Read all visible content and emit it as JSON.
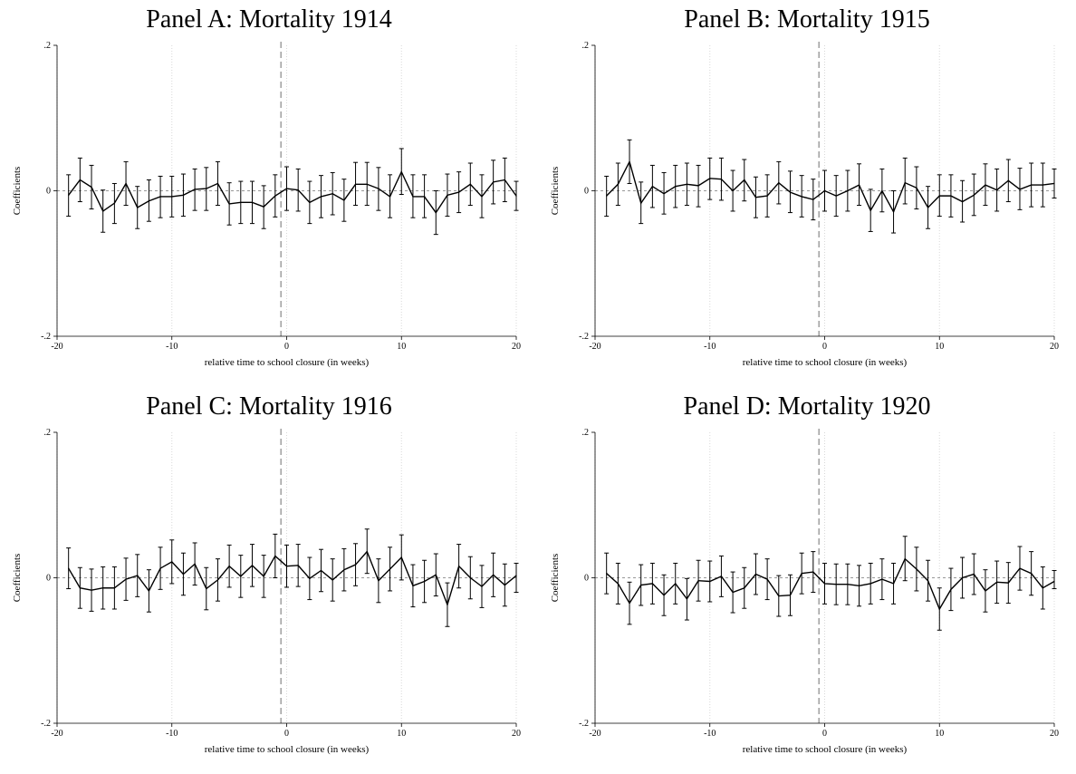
{
  "chart_data": [
    {
      "type": "line",
      "title": "Panel A: Mortality 1914",
      "xlabel": "relative time to school closure (in weeks)",
      "ylabel": "Coefficients",
      "xlim": [
        -20,
        20
      ],
      "ylim": [
        -0.2,
        0.2
      ],
      "xticks": [
        "-20",
        "-10",
        "0",
        "10",
        "20"
      ],
      "yticks": [
        "-.2",
        "0",
        ".2"
      ],
      "event_line_x": -0.5,
      "grid": "vertical dotted",
      "series": [
        {
          "x": [
            -19,
            -18,
            -17,
            -16,
            -15,
            -14,
            -13,
            -12,
            -11,
            -10,
            -9,
            -8,
            -7,
            -6,
            -5,
            -4,
            -3,
            -2,
            -1,
            0,
            1,
            2,
            3,
            4,
            5,
            6,
            7,
            8,
            9,
            10,
            11,
            12,
            13,
            14,
            15,
            16,
            17,
            18,
            19,
            20
          ],
          "values": [
            -0.006,
            0.015,
            0.005,
            -0.028,
            -0.017,
            0.01,
            -0.023,
            -0.014,
            -0.008,
            -0.008,
            -0.006,
            0.002,
            0.003,
            0.01,
            -0.018,
            -0.016,
            -0.016,
            -0.022,
            -0.007,
            0.003,
            0.001,
            -0.016,
            -0.008,
            -0.004,
            -0.013,
            0.009,
            0.009,
            0.003,
            -0.008,
            0.026,
            -0.008,
            -0.008,
            -0.03,
            -0.006,
            -0.002,
            0.009,
            -0.008,
            0.012,
            0.015,
            -0.007
          ],
          "ci_low": [
            -0.035,
            -0.015,
            -0.025,
            -0.057,
            -0.045,
            -0.02,
            -0.052,
            -0.042,
            -0.037,
            -0.036,
            -0.035,
            -0.027,
            -0.027,
            -0.02,
            -0.047,
            -0.045,
            -0.045,
            -0.052,
            -0.036,
            -0.027,
            -0.028,
            -0.045,
            -0.037,
            -0.033,
            -0.042,
            -0.02,
            -0.02,
            -0.027,
            -0.037,
            -0.005,
            -0.037,
            -0.037,
            -0.06,
            -0.035,
            -0.03,
            -0.02,
            -0.037,
            -0.018,
            -0.015,
            -0.027
          ],
          "ci_high": [
            0.022,
            0.045,
            0.035,
            0.001,
            0.01,
            0.04,
            0.006,
            0.015,
            0.02,
            0.02,
            0.023,
            0.03,
            0.032,
            0.04,
            0.011,
            0.013,
            0.013,
            0.007,
            0.022,
            0.033,
            0.03,
            0.013,
            0.021,
            0.025,
            0.016,
            0.039,
            0.039,
            0.032,
            0.022,
            0.058,
            0.022,
            0.022,
            0.0,
            0.023,
            0.026,
            0.038,
            0.022,
            0.042,
            0.045,
            0.013
          ]
        }
      ]
    },
    {
      "type": "line",
      "title": "Panel B: Mortality 1915",
      "xlabel": "relative time to school closure (in weeks)",
      "ylabel": "Coefficients",
      "xlim": [
        -20,
        20
      ],
      "ylim": [
        -0.2,
        0.2
      ],
      "xticks": [
        "-20",
        "-10",
        "0",
        "10",
        "20"
      ],
      "yticks": [
        "-.2",
        "0",
        ".2"
      ],
      "event_line_x": -0.5,
      "grid": "vertical dotted",
      "series": [
        {
          "x": [
            -19,
            -18,
            -17,
            -16,
            -15,
            -14,
            -13,
            -12,
            -11,
            -10,
            -9,
            -8,
            -7,
            -6,
            -5,
            -4,
            -3,
            -2,
            -1,
            0,
            1,
            2,
            3,
            4,
            5,
            6,
            7,
            8,
            9,
            10,
            11,
            12,
            13,
            14,
            15,
            16,
            17,
            18,
            19,
            20
          ],
          "values": [
            -0.007,
            0.009,
            0.04,
            -0.017,
            0.006,
            -0.004,
            0.006,
            0.009,
            0.007,
            0.017,
            0.016,
            0.0,
            0.015,
            -0.009,
            -0.007,
            0.011,
            -0.002,
            -0.008,
            -0.012,
            0.0,
            -0.007,
            0.0,
            0.008,
            -0.027,
            0.0,
            -0.029,
            0.011,
            0.004,
            -0.023,
            -0.007,
            -0.007,
            -0.015,
            -0.006,
            0.008,
            0.001,
            0.014,
            0.002,
            0.008,
            0.008,
            0.01
          ],
          "ci_low": [
            -0.035,
            -0.02,
            0.01,
            -0.045,
            -0.023,
            -0.032,
            -0.023,
            -0.02,
            -0.022,
            -0.012,
            -0.013,
            -0.028,
            -0.014,
            -0.037,
            -0.036,
            -0.018,
            -0.03,
            -0.036,
            -0.04,
            -0.028,
            -0.035,
            -0.028,
            -0.02,
            -0.056,
            -0.029,
            -0.058,
            -0.018,
            -0.025,
            -0.052,
            -0.035,
            -0.036,
            -0.043,
            -0.034,
            -0.02,
            -0.028,
            -0.015,
            -0.026,
            -0.022,
            -0.022,
            -0.01
          ],
          "ci_high": [
            0.02,
            0.038,
            0.07,
            0.012,
            0.035,
            0.025,
            0.035,
            0.038,
            0.035,
            0.045,
            0.045,
            0.028,
            0.043,
            0.019,
            0.022,
            0.04,
            0.027,
            0.021,
            0.016,
            0.028,
            0.021,
            0.028,
            0.037,
            0.002,
            0.03,
            0.0,
            0.045,
            0.033,
            0.006,
            0.022,
            0.022,
            0.014,
            0.023,
            0.037,
            0.03,
            0.043,
            0.031,
            0.038,
            0.038,
            0.03
          ]
        }
      ]
    },
    {
      "type": "line",
      "title": "Panel C: Mortality 1916",
      "xlabel": "relative time to school closure (in weeks)",
      "ylabel": "Coefficients",
      "xlim": [
        -20,
        20
      ],
      "ylim": [
        -0.2,
        0.2
      ],
      "xticks": [
        "-20",
        "-10",
        "0",
        "10",
        "20"
      ],
      "yticks": [
        "-.2",
        "0",
        ".2"
      ],
      "event_line_x": -0.5,
      "grid": "vertical dotted",
      "series": [
        {
          "x": [
            -19,
            -18,
            -17,
            -16,
            -15,
            -14,
            -13,
            -12,
            -11,
            -10,
            -9,
            -8,
            -7,
            -6,
            -5,
            -4,
            -3,
            -2,
            -1,
            0,
            1,
            2,
            3,
            4,
            5,
            6,
            7,
            8,
            9,
            10,
            11,
            12,
            13,
            14,
            15,
            16,
            17,
            18,
            19,
            20
          ],
          "values": [
            0.013,
            -0.014,
            -0.017,
            -0.014,
            -0.014,
            -0.002,
            0.003,
            -0.018,
            0.013,
            0.022,
            0.005,
            0.019,
            -0.015,
            -0.003,
            0.016,
            0.002,
            0.017,
            0.002,
            0.03,
            0.016,
            0.017,
            -0.001,
            0.01,
            -0.003,
            0.011,
            0.018,
            0.036,
            -0.004,
            0.012,
            0.028,
            -0.011,
            -0.005,
            0.004,
            -0.037,
            0.016,
            0.0,
            -0.012,
            0.004,
            -0.01,
            0.003
          ],
          "ci_low": [
            -0.015,
            -0.042,
            -0.046,
            -0.043,
            -0.043,
            -0.031,
            -0.026,
            -0.047,
            -0.016,
            -0.008,
            -0.024,
            -0.01,
            -0.044,
            -0.032,
            -0.013,
            -0.027,
            -0.012,
            -0.027,
            0.0,
            -0.013,
            -0.012,
            -0.03,
            -0.019,
            -0.032,
            -0.018,
            -0.011,
            0.006,
            -0.034,
            -0.018,
            -0.003,
            -0.04,
            -0.034,
            -0.025,
            -0.067,
            -0.014,
            -0.029,
            -0.041,
            -0.026,
            -0.039,
            -0.02
          ],
          "ci_high": [
            0.041,
            0.014,
            0.012,
            0.015,
            0.015,
            0.027,
            0.032,
            0.011,
            0.042,
            0.052,
            0.034,
            0.048,
            0.014,
            0.026,
            0.045,
            0.031,
            0.046,
            0.031,
            0.06,
            0.045,
            0.046,
            0.028,
            0.039,
            0.026,
            0.04,
            0.047,
            0.067,
            0.026,
            0.042,
            0.059,
            0.018,
            0.024,
            0.033,
            -0.007,
            0.046,
            0.029,
            0.017,
            0.034,
            0.019,
            0.02
          ]
        }
      ]
    },
    {
      "type": "line",
      "title": "Panel D: Mortality 1920",
      "xlabel": "relative time to school closure (in weeks)",
      "ylabel": "Coefficients",
      "xlim": [
        -20,
        20
      ],
      "ylim": [
        -0.2,
        0.2
      ],
      "xticks": [
        "-20",
        "-10",
        "0",
        "10",
        "20"
      ],
      "yticks": [
        "-.2",
        "0",
        ".2"
      ],
      "event_line_x": -0.5,
      "grid": "vertical dotted",
      "series": [
        {
          "x": [
            -19,
            -18,
            -17,
            -16,
            -15,
            -14,
            -13,
            -12,
            -11,
            -10,
            -9,
            -8,
            -7,
            -6,
            -5,
            -4,
            -3,
            -2,
            -1,
            0,
            1,
            2,
            3,
            4,
            5,
            6,
            7,
            8,
            9,
            10,
            11,
            12,
            13,
            14,
            15,
            16,
            17,
            18,
            19,
            20
          ],
          "values": [
            0.006,
            -0.008,
            -0.035,
            -0.01,
            -0.008,
            -0.024,
            -0.008,
            -0.029,
            -0.004,
            -0.005,
            0.002,
            -0.02,
            -0.014,
            0.005,
            -0.002,
            -0.025,
            -0.024,
            0.006,
            0.008,
            -0.008,
            -0.009,
            -0.009,
            -0.011,
            -0.008,
            -0.002,
            -0.008,
            0.026,
            0.012,
            -0.004,
            -0.043,
            -0.016,
            0.0,
            0.005,
            -0.018,
            -0.006,
            -0.007,
            0.013,
            0.006,
            -0.014,
            -0.005
          ],
          "ci_low": [
            -0.022,
            -0.036,
            -0.064,
            -0.038,
            -0.036,
            -0.052,
            -0.036,
            -0.058,
            -0.032,
            -0.033,
            -0.026,
            -0.048,
            -0.042,
            -0.023,
            -0.03,
            -0.053,
            -0.052,
            -0.022,
            -0.02,
            -0.036,
            -0.037,
            -0.037,
            -0.039,
            -0.036,
            -0.03,
            -0.036,
            -0.004,
            -0.018,
            -0.032,
            -0.072,
            -0.045,
            -0.028,
            -0.023,
            -0.047,
            -0.035,
            -0.035,
            -0.017,
            -0.024,
            -0.043,
            -0.015
          ],
          "ci_high": [
            0.034,
            0.02,
            -0.006,
            0.018,
            0.02,
            0.004,
            0.02,
            -0.001,
            0.024,
            0.023,
            0.03,
            0.008,
            0.014,
            0.033,
            0.026,
            0.003,
            0.004,
            0.034,
            0.036,
            0.02,
            0.019,
            0.019,
            0.017,
            0.02,
            0.026,
            0.02,
            0.057,
            0.042,
            0.024,
            -0.014,
            0.013,
            0.028,
            0.033,
            0.011,
            0.023,
            0.021,
            0.043,
            0.036,
            0.015,
            0.01
          ]
        }
      ]
    }
  ]
}
